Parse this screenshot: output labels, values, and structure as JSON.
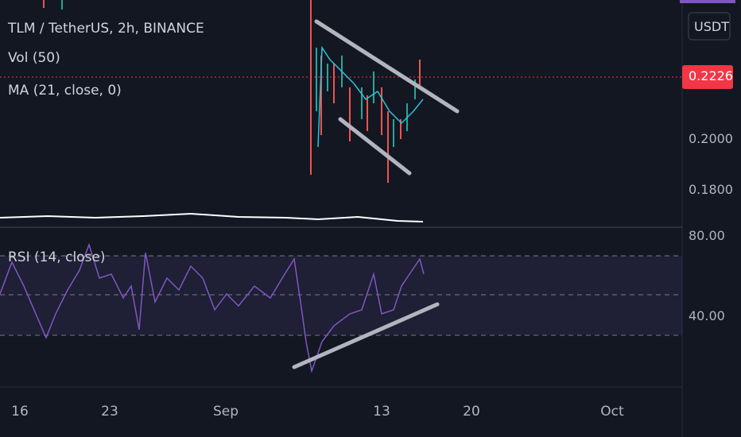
{
  "legend": {
    "symbol": "TLM / TetherUS, 2h, BINANCE",
    "volume": "Vol (50)",
    "ma": "MA (21, close, 0)",
    "rsi": "RSI (14, close)"
  },
  "price_axis": {
    "currency": "USDT",
    "last_price": "0.2226",
    "ticks": [
      "0.2000",
      "0.1800"
    ]
  },
  "rsi_axis": {
    "ticks": [
      "80.00",
      "40.00"
    ]
  },
  "time_axis": [
    "16",
    "23",
    "Sep",
    "13",
    "20",
    "Oct"
  ]
}
